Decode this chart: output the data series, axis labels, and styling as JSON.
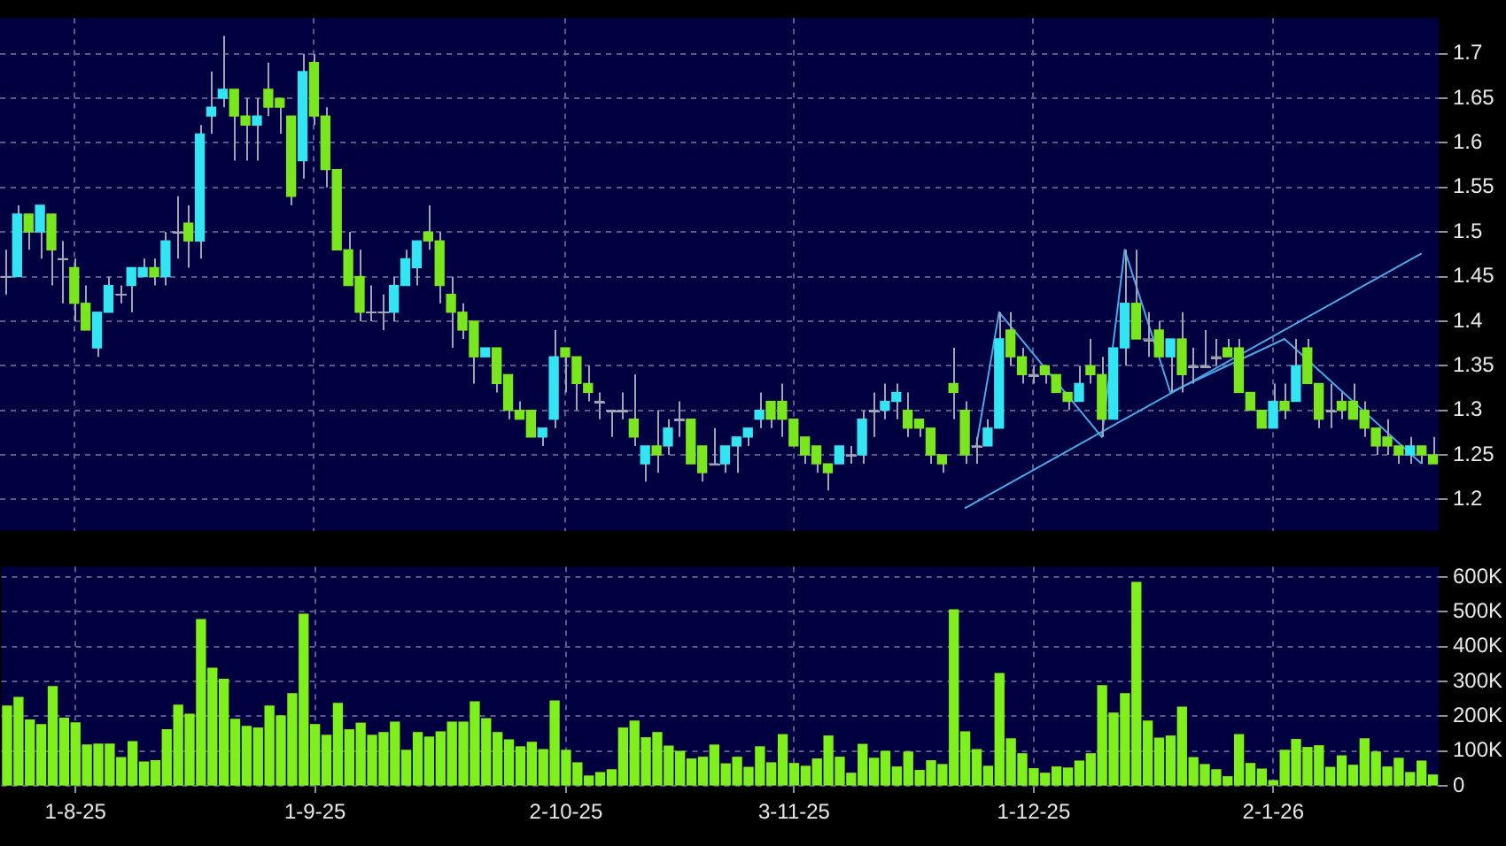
{
  "chart_data": [
    {
      "type": "candlestick",
      "grid": true,
      "legend": false,
      "tick_labels": "y",
      "categories": [
        null,
        null,
        null,
        null,
        null,
        null,
        null,
        null,
        null,
        null,
        null,
        null,
        null,
        null,
        null,
        null,
        null,
        null,
        null,
        null,
        null,
        null,
        null,
        null,
        null,
        null,
        null,
        null,
        null,
        null,
        null,
        null,
        null,
        null,
        null,
        null,
        null,
        null,
        null,
        null,
        null,
        null,
        null,
        null,
        null,
        null,
        null,
        null,
        null,
        null,
        null,
        null,
        null,
        null,
        null,
        null,
        null,
        null,
        null,
        null,
        null,
        null,
        null,
        null,
        null,
        null,
        null,
        null,
        null,
        null,
        null,
        null,
        null,
        null,
        null,
        null,
        null,
        null,
        null,
        null,
        null,
        null,
        null,
        null,
        null,
        null,
        null,
        null,
        null,
        null,
        null,
        null,
        null,
        null,
        null,
        null,
        null,
        null,
        null,
        null,
        null,
        null,
        null,
        null,
        null,
        null,
        null,
        null,
        null,
        null,
        null,
        null,
        null,
        null,
        null,
        null,
        null,
        null,
        null,
        null,
        null,
        null,
        null,
        null,
        null,
        null
      ],
      "ylim": [
        1.165,
        1.74
      ],
      "yticks": [
        1.2,
        1.25,
        1.3,
        1.35,
        1.4,
        1.45,
        1.5,
        1.55,
        1.6,
        1.65,
        1.7
      ],
      "series": [
        {
          "type": "candlestick",
          "ohlc": [
            [
              1.45,
              1.48,
              1.43,
              1.45
            ],
            [
              1.45,
              1.53,
              1.45,
              1.52
            ],
            [
              1.52,
              1.52,
              1.48,
              1.5
            ],
            [
              1.5,
              1.53,
              1.47,
              1.53
            ],
            [
              1.52,
              1.52,
              1.44,
              1.48
            ],
            [
              1.47,
              1.49,
              1.42,
              1.47
            ],
            [
              1.46,
              1.47,
              1.4,
              1.42
            ],
            [
              1.42,
              1.44,
              1.39,
              1.39
            ],
            [
              1.37,
              1.41,
              1.36,
              1.41
            ],
            [
              1.41,
              1.45,
              1.41,
              1.44
            ],
            [
              1.43,
              1.44,
              1.42,
              1.43
            ],
            [
              1.44,
              1.46,
              1.41,
              1.46
            ],
            [
              1.45,
              1.47,
              1.45,
              1.46
            ],
            [
              1.46,
              1.47,
              1.44,
              1.45
            ],
            [
              1.45,
              1.5,
              1.44,
              1.49
            ],
            [
              1.5,
              1.54,
              1.47,
              1.5
            ],
            [
              1.51,
              1.53,
              1.46,
              1.49
            ],
            [
              1.49,
              1.62,
              1.47,
              1.61
            ],
            [
              1.63,
              1.68,
              1.61,
              1.64
            ],
            [
              1.65,
              1.72,
              1.64,
              1.66
            ],
            [
              1.66,
              1.66,
              1.58,
              1.63
            ],
            [
              1.63,
              1.65,
              1.58,
              1.62
            ],
            [
              1.62,
              1.65,
              1.58,
              1.63
            ],
            [
              1.66,
              1.69,
              1.63,
              1.64
            ],
            [
              1.65,
              1.65,
              1.61,
              1.64
            ],
            [
              1.63,
              1.63,
              1.53,
              1.54
            ],
            [
              1.58,
              1.7,
              1.56,
              1.68
            ],
            [
              1.69,
              1.7,
              1.62,
              1.63
            ],
            [
              1.63,
              1.64,
              1.55,
              1.57
            ],
            [
              1.57,
              1.57,
              1.48,
              1.48
            ],
            [
              1.48,
              1.5,
              1.44,
              1.44
            ],
            [
              1.45,
              1.48,
              1.4,
              1.41
            ],
            [
              1.41,
              1.44,
              1.4,
              1.41
            ],
            [
              1.41,
              1.43,
              1.39,
              1.41
            ],
            [
              1.41,
              1.45,
              1.4,
              1.44
            ],
            [
              1.44,
              1.48,
              1.44,
              1.47
            ],
            [
              1.46,
              1.49,
              1.44,
              1.49
            ],
            [
              1.5,
              1.53,
              1.48,
              1.49
            ],
            [
              1.49,
              1.5,
              1.42,
              1.44
            ],
            [
              1.43,
              1.45,
              1.37,
              1.41
            ],
            [
              1.41,
              1.42,
              1.38,
              1.39
            ],
            [
              1.4,
              1.4,
              1.33,
              1.36
            ],
            [
              1.36,
              1.37,
              1.36,
              1.37
            ],
            [
              1.37,
              1.37,
              1.32,
              1.33
            ],
            [
              1.34,
              1.34,
              1.29,
              1.3
            ],
            [
              1.3,
              1.31,
              1.29,
              1.29
            ],
            [
              1.3,
              1.3,
              1.27,
              1.27
            ],
            [
              1.27,
              1.28,
              1.26,
              1.28
            ],
            [
              1.29,
              1.39,
              1.28,
              1.36
            ],
            [
              1.37,
              1.37,
              1.32,
              1.36
            ],
            [
              1.36,
              1.36,
              1.3,
              1.33
            ],
            [
              1.33,
              1.35,
              1.31,
              1.32
            ],
            [
              1.31,
              1.32,
              1.29,
              1.31
            ],
            [
              1.3,
              1.3,
              1.27,
              1.3
            ],
            [
              1.3,
              1.32,
              1.29,
              1.3
            ],
            [
              1.29,
              1.34,
              1.26,
              1.27
            ],
            [
              1.24,
              1.26,
              1.22,
              1.26
            ],
            [
              1.26,
              1.3,
              1.23,
              1.25
            ],
            [
              1.26,
              1.29,
              1.25,
              1.28
            ],
            [
              1.29,
              1.31,
              1.27,
              1.29
            ],
            [
              1.29,
              1.29,
              1.24,
              1.24
            ],
            [
              1.26,
              1.26,
              1.22,
              1.23
            ],
            [
              1.24,
              1.28,
              1.24,
              1.24
            ],
            [
              1.24,
              1.26,
              1.23,
              1.26
            ],
            [
              1.26,
              1.27,
              1.23,
              1.27
            ],
            [
              1.27,
              1.28,
              1.26,
              1.28
            ],
            [
              1.29,
              1.32,
              1.28,
              1.3
            ],
            [
              1.31,
              1.31,
              1.28,
              1.29
            ],
            [
              1.31,
              1.33,
              1.27,
              1.29
            ],
            [
              1.29,
              1.29,
              1.26,
              1.26
            ],
            [
              1.27,
              1.27,
              1.24,
              1.25
            ],
            [
              1.26,
              1.26,
              1.23,
              1.24
            ],
            [
              1.24,
              1.24,
              1.21,
              1.23
            ],
            [
              1.24,
              1.26,
              1.24,
              1.26
            ],
            [
              1.25,
              1.26,
              1.24,
              1.25
            ],
            [
              1.25,
              1.3,
              1.24,
              1.29
            ],
            [
              1.3,
              1.32,
              1.27,
              1.3
            ],
            [
              1.3,
              1.33,
              1.29,
              1.31
            ],
            [
              1.31,
              1.33,
              1.29,
              1.32
            ],
            [
              1.3,
              1.32,
              1.27,
              1.28
            ],
            [
              1.29,
              1.29,
              1.27,
              1.28
            ],
            [
              1.28,
              1.28,
              1.24,
              1.25
            ],
            [
              1.25,
              1.25,
              1.23,
              1.24
            ],
            [
              1.33,
              1.37,
              1.29,
              1.32
            ],
            [
              1.3,
              1.31,
              1.24,
              1.25
            ],
            [
              1.26,
              1.27,
              1.24,
              1.26
            ],
            [
              1.26,
              1.29,
              1.26,
              1.28
            ],
            [
              1.28,
              1.41,
              1.28,
              1.38
            ],
            [
              1.39,
              1.41,
              1.35,
              1.36
            ],
            [
              1.36,
              1.37,
              1.33,
              1.34
            ],
            [
              1.34,
              1.35,
              1.33,
              1.34
            ],
            [
              1.35,
              1.35,
              1.33,
              1.34
            ],
            [
              1.34,
              1.34,
              1.32,
              1.32
            ],
            [
              1.32,
              1.32,
              1.3,
              1.31
            ],
            [
              1.31,
              1.35,
              1.31,
              1.33
            ],
            [
              1.35,
              1.38,
              1.33,
              1.34
            ],
            [
              1.34,
              1.36,
              1.27,
              1.29
            ],
            [
              1.29,
              1.37,
              1.29,
              1.37
            ],
            [
              1.37,
              1.48,
              1.35,
              1.42
            ],
            [
              1.42,
              1.48,
              1.38,
              1.38
            ],
            [
              1.38,
              1.41,
              1.36,
              1.38
            ],
            [
              1.39,
              1.4,
              1.36,
              1.36
            ],
            [
              1.36,
              1.38,
              1.32,
              1.38
            ],
            [
              1.38,
              1.41,
              1.32,
              1.34
            ],
            [
              1.35,
              1.37,
              1.33,
              1.35
            ],
            [
              1.35,
              1.39,
              1.35,
              1.35
            ],
            [
              1.36,
              1.38,
              1.35,
              1.36
            ],
            [
              1.37,
              1.38,
              1.36,
              1.36
            ],
            [
              1.37,
              1.38,
              1.32,
              1.32
            ],
            [
              1.32,
              1.32,
              1.3,
              1.3
            ],
            [
              1.3,
              1.3,
              1.28,
              1.28
            ],
            [
              1.28,
              1.33,
              1.28,
              1.31
            ],
            [
              1.31,
              1.33,
              1.29,
              1.3
            ],
            [
              1.31,
              1.38,
              1.31,
              1.35
            ],
            [
              1.37,
              1.38,
              1.33,
              1.33
            ],
            [
              1.33,
              1.33,
              1.28,
              1.29
            ],
            [
              1.3,
              1.33,
              1.28,
              1.3
            ],
            [
              1.31,
              1.32,
              1.29,
              1.3
            ],
            [
              1.31,
              1.33,
              1.29,
              1.29
            ],
            [
              1.3,
              1.31,
              1.27,
              1.28
            ],
            [
              1.28,
              1.28,
              1.25,
              1.26
            ],
            [
              1.27,
              1.29,
              1.25,
              1.26
            ],
            [
              1.26,
              1.26,
              1.24,
              1.25
            ],
            [
              1.25,
              1.27,
              1.24,
              1.26
            ],
            [
              1.26,
              1.26,
              1.24,
              1.25
            ],
            [
              1.25,
              1.27,
              1.24,
              1.24
            ]
          ],
          "colors": [
            "#a0a4b4",
            "#33e5f2",
            "#79e61e",
            "#33e5f2",
            "#79e61e",
            "#a0a4b4",
            "#79e61e",
            "#79e61e",
            "#33e5f2",
            "#33e5f2",
            "#a0a4b4",
            "#33e5f2",
            "#33e5f2",
            "#79e61e",
            "#33e5f2",
            "#a0a4b4",
            "#79e61e",
            "#33e5f2",
            "#33e5f2",
            "#33e5f2",
            "#79e61e",
            "#79e61e",
            "#33e5f2",
            "#79e61e",
            "#79e61e",
            "#79e61e",
            "#33e5f2",
            "#79e61e",
            "#79e61e",
            "#79e61e",
            "#79e61e",
            "#79e61e",
            "#a0a4b4",
            "#a0a4b4",
            "#33e5f2",
            "#33e5f2",
            "#33e5f2",
            "#79e61e",
            "#79e61e",
            "#79e61e",
            "#79e61e",
            "#79e61e",
            "#33e5f2",
            "#79e61e",
            "#79e61e",
            "#79e61e",
            "#79e61e",
            "#33e5f2",
            "#33e5f2",
            "#79e61e",
            "#79e61e",
            "#79e61e",
            "#a0a4b4",
            "#a0a4b4",
            "#a0a4b4",
            "#79e61e",
            "#33e5f2",
            "#79e61e",
            "#33e5f2",
            "#a0a4b4",
            "#79e61e",
            "#79e61e",
            "#a0a4b4",
            "#33e5f2",
            "#33e5f2",
            "#33e5f2",
            "#33e5f2",
            "#79e61e",
            "#79e61e",
            "#79e61e",
            "#79e61e",
            "#79e61e",
            "#79e61e",
            "#33e5f2",
            "#a0a4b4",
            "#33e5f2",
            "#a0a4b4",
            "#33e5f2",
            "#33e5f2",
            "#79e61e",
            "#79e61e",
            "#79e61e",
            "#79e61e",
            "#79e61e",
            "#79e61e",
            "#a0a4b4",
            "#33e5f2",
            "#33e5f2",
            "#79e61e",
            "#79e61e",
            "#a0a4b4",
            "#79e61e",
            "#79e61e",
            "#79e61e",
            "#33e5f2",
            "#79e61e",
            "#79e61e",
            "#33e5f2",
            "#33e5f2",
            "#79e61e",
            "#a0a4b4",
            "#79e61e",
            "#33e5f2",
            "#79e61e",
            "#a0a4b4",
            "#a0a4b4",
            "#a0a4b4",
            "#79e61e",
            "#79e61e",
            "#79e61e",
            "#79e61e",
            "#33e5f2",
            "#79e61e",
            "#33e5f2",
            "#79e61e",
            "#79e61e",
            "#a0a4b4",
            "#79e61e",
            "#79e61e",
            "#79e61e",
            "#79e61e",
            "#79e61e",
            "#79e61e",
            "#33e5f2",
            "#79e61e",
            "#79e61e"
          ]
        },
        {
          "type": "line",
          "color": "#4aa8e8",
          "values": [
            null,
            null,
            null,
            null,
            null,
            null,
            null,
            null,
            null,
            null,
            null,
            null,
            null,
            null,
            null,
            null,
            null,
            null,
            null,
            null,
            null,
            null,
            null,
            null,
            null,
            null,
            null,
            null,
            null,
            null,
            null,
            null,
            null,
            null,
            null,
            null,
            null,
            null,
            null,
            null,
            null,
            null,
            null,
            null,
            null,
            null,
            null,
            null,
            null,
            null,
            null,
            null,
            null,
            null,
            null,
            null,
            null,
            null,
            null,
            null,
            null,
            null,
            null,
            null,
            null,
            null,
            null,
            null,
            null,
            null,
            null,
            null,
            null,
            null,
            null,
            null,
            null,
            null,
            null,
            null,
            null,
            null,
            null,
            null,
            null,
            1.26,
            null,
            1.41,
            null,
            null,
            null,
            null,
            null,
            null,
            null,
            null,
            1.27,
            null,
            1.48,
            null,
            null,
            null,
            1.32,
            null,
            null,
            null,
            null,
            null,
            null,
            null,
            null,
            null,
            1.38,
            null,
            null,
            null,
            null,
            null,
            null,
            null,
            null,
            null,
            null,
            null,
            1.24,
            null
          ]
        },
        {
          "type": "line",
          "color": "#4aa8e8",
          "values": [
            null,
            null,
            null,
            null,
            null,
            null,
            null,
            null,
            null,
            null,
            null,
            null,
            null,
            null,
            null,
            null,
            null,
            null,
            null,
            null,
            null,
            null,
            null,
            null,
            null,
            null,
            null,
            null,
            null,
            null,
            null,
            null,
            null,
            null,
            null,
            null,
            null,
            null,
            null,
            null,
            null,
            null,
            null,
            null,
            null,
            null,
            null,
            null,
            null,
            null,
            null,
            null,
            null,
            null,
            null,
            null,
            null,
            null,
            null,
            null,
            null,
            null,
            null,
            null,
            null,
            null,
            null,
            null,
            null,
            null,
            null,
            null,
            null,
            null,
            null,
            null,
            null,
            null,
            null,
            null,
            null,
            null,
            null,
            null,
            1.19,
            null,
            null,
            null,
            null,
            null,
            null,
            null,
            null,
            null,
            null,
            null,
            null,
            null,
            null,
            null,
            null,
            null,
            null,
            null,
            null,
            null,
            null,
            null,
            null,
            null,
            null,
            null,
            null,
            null,
            null,
            null,
            null,
            null,
            null,
            null,
            null,
            null,
            null,
            null,
            1.476,
            null
          ]
        }
      ]
    },
    {
      "type": "bar",
      "color": "#7ff01c",
      "grid": true,
      "legend": false,
      "categories": [
        null,
        null,
        null,
        null,
        null,
        null,
        "1-8-25",
        null,
        null,
        null,
        null,
        null,
        null,
        null,
        null,
        null,
        null,
        null,
        null,
        null,
        null,
        null,
        null,
        null,
        null,
        null,
        null,
        "1-9-25",
        null,
        null,
        null,
        null,
        null,
        null,
        null,
        null,
        null,
        null,
        null,
        null,
        null,
        null,
        null,
        null,
        null,
        null,
        null,
        null,
        null,
        "2-10-25",
        null,
        null,
        null,
        null,
        null,
        null,
        null,
        null,
        null,
        null,
        null,
        null,
        null,
        null,
        null,
        null,
        null,
        null,
        null,
        "3-11-25",
        null,
        null,
        null,
        null,
        null,
        null,
        null,
        null,
        null,
        null,
        null,
        null,
        null,
        null,
        null,
        null,
        null,
        null,
        null,
        null,
        "1-12-25",
        null,
        null,
        null,
        null,
        null,
        null,
        null,
        null,
        null,
        null,
        null,
        null,
        null,
        null,
        null,
        null,
        null,
        null,
        null,
        null,
        "2-1-26",
        null,
        null,
        null,
        null,
        null,
        null,
        null,
        null,
        null,
        null,
        null,
        null,
        null,
        null
      ],
      "ylim": [
        0,
        630000
      ],
      "yticks": [
        0,
        {
          "value": 100000,
          "label": "100K"
        },
        {
          "value": 200000,
          "label": "200K"
        },
        {
          "value": 300000,
          "label": "300K"
        },
        {
          "value": 400000,
          "label": "400K"
        },
        {
          "value": 500000,
          "label": "500K"
        },
        {
          "value": 600000,
          "label": "600K"
        }
      ],
      "values": [
        229000,
        254000,
        189000,
        176000,
        285000,
        194000,
        181000,
        117000,
        120000,
        120000,
        81000,
        127000,
        68000,
        72000,
        161000,
        232000,
        206000,
        478000,
        338000,
        306000,
        191000,
        171000,
        166000,
        229000,
        201000,
        265000,
        493000,
        176000,
        145000,
        237000,
        161000,
        180000,
        145000,
        153000,
        183000,
        102000,
        153000,
        140000,
        155000,
        183000,
        183000,
        241000,
        193000,
        153000,
        132000,
        112000,
        125000,
        104000,
        244000,
        102000,
        66000,
        28000,
        38000,
        46000,
        166000,
        186000,
        138000,
        153000,
        114000,
        99000,
        77000,
        82000,
        117000,
        63000,
        82000,
        53000,
        112000,
        66000,
        147000,
        64000,
        56000,
        77000,
        143000,
        82000,
        36000,
        119000,
        79000,
        99000,
        54000,
        97000,
        44000,
        72000,
        61000,
        506000,
        155000,
        104000,
        56000,
        323000,
        135000,
        92000,
        49000,
        36000,
        54000,
        51000,
        71000,
        92000,
        288000,
        209000,
        265000,
        585000,
        186000,
        137000,
        143000,
        226000,
        81000,
        61000,
        46000,
        26000,
        147000,
        64000,
        48000,
        15000,
        102000,
        133000,
        110000,
        115000,
        53000,
        86000,
        59000,
        135000,
        97000,
        54000,
        79000,
        38000,
        71000,
        31000
      ]
    }
  ]
}
